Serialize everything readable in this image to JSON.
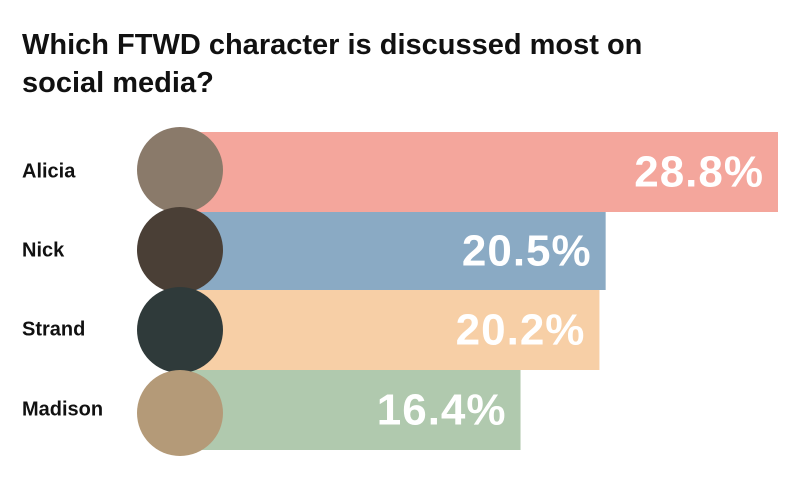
{
  "chart_data": {
    "type": "bar",
    "orientation": "horizontal",
    "title": "Which FTWD character is discussed most on social media?",
    "categories": [
      "Alicia",
      "Nick",
      "Strand",
      "Madison"
    ],
    "values": [
      28.8,
      20.5,
      20.2,
      16.4
    ],
    "value_labels": [
      "28.8%",
      "20.5%",
      "20.2%",
      "16.4%"
    ],
    "colors": [
      "#f4a69c",
      "#8aaac4",
      "#f7cfa6",
      "#b0c9ae"
    ]
  }
}
